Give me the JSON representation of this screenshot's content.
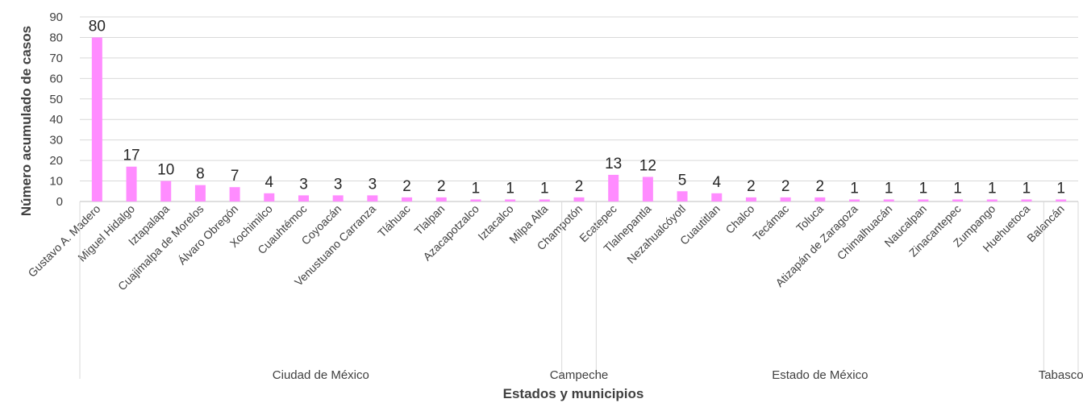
{
  "chart_data": {
    "type": "bar",
    "title": "",
    "xlabel": "Estados y municipios",
    "ylabel": "Número acumulado de casos",
    "ylim": [
      0,
      90
    ],
    "yticks": [
      0,
      10,
      20,
      30,
      40,
      50,
      60,
      70,
      80,
      90
    ],
    "grid": true,
    "legend": "none",
    "bar_color": "#ff8cff",
    "categories": [
      "Gustavo A. Madero",
      "Miguel Hidalgo",
      "Iztapalapa",
      "Cuajimalpa de Morelos",
      "Álvaro Obregón",
      "Xochimilco",
      "Cuauhtémoc",
      "Coyoacán",
      "Venustuano Carranza",
      "Tláhuac",
      "Tlalpan",
      "Azacapotzalco",
      "Iztacalco",
      "Milpa Alta",
      "Champotón",
      "Ecatepec",
      "Tlalnepantla",
      "Nezahualcóyotl",
      "Cuautitlan",
      "Chalco",
      "Tecámac",
      "Toluca",
      "Atizapán de Zaragoza",
      "Chimalhuacán",
      "Naucalpan",
      "Zinacantepec",
      "Zumpango",
      "Huehuetoca",
      "Balancán"
    ],
    "values": [
      80,
      17,
      10,
      8,
      7,
      4,
      3,
      3,
      3,
      2,
      2,
      1,
      1,
      1,
      2,
      13,
      12,
      5,
      4,
      2,
      2,
      2,
      1,
      1,
      1,
      1,
      1,
      1,
      1
    ],
    "groups": [
      {
        "name": "Ciudad de México",
        "count": 14
      },
      {
        "name": "Campeche",
        "count": 1
      },
      {
        "name": "Estado de México",
        "count": 13
      },
      {
        "name": "Tabasco",
        "count": 1
      }
    ]
  }
}
